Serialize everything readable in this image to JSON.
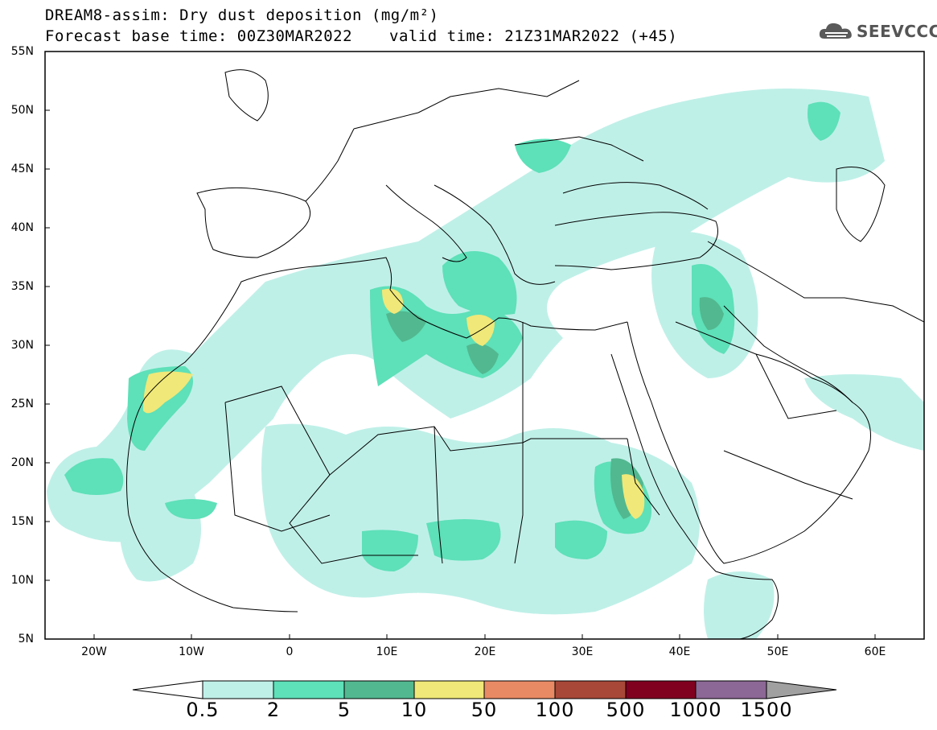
{
  "header": {
    "title_line1": "DREAM8-assim: Dry dust deposition (mg/m²)",
    "title_line2": "Forecast base time: 00Z30MAR2022",
    "valid_time": "valid time: 21Z31MAR2022 (+45)",
    "logo_text": "SEEVCCC"
  },
  "axes": {
    "lat_labels": [
      "55N",
      "50N",
      "45N",
      "40N",
      "35N",
      "30N",
      "25N",
      "20N",
      "15N",
      "10N",
      "5N"
    ],
    "lon_labels": [
      "20W",
      "10W",
      "0",
      "10E",
      "20E",
      "30E",
      "40E",
      "50E",
      "60E"
    ]
  },
  "colorbar": {
    "levels": [
      "0.5",
      "2",
      "5",
      "10",
      "50",
      "100",
      "500",
      "1000",
      "1500"
    ],
    "colors": [
      "#ffffff",
      "#bff0e8",
      "#5ee0b8",
      "#52b890",
      "#f0e878",
      "#e88a64",
      "#a84838",
      "#800020",
      "#8c6896",
      "#a0a0a0"
    ]
  }
}
